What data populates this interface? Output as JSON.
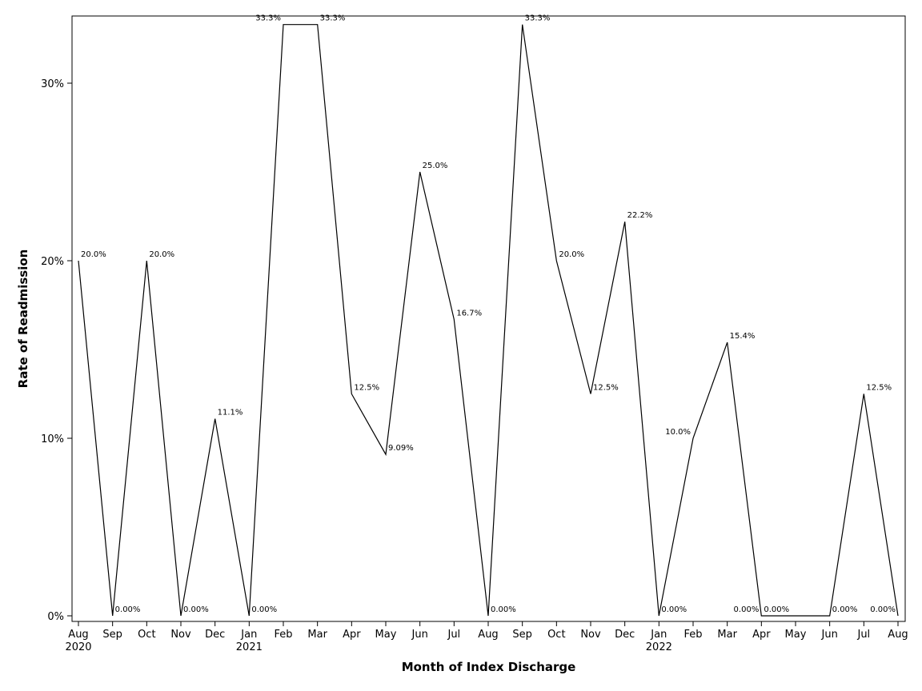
{
  "chart_data": {
    "type": "line",
    "xlabel": "Month of Index Discharge",
    "ylabel": "Rate of Readmission",
    "ylim": [
      0,
      33.3
    ],
    "yticks": [
      {
        "value": 0,
        "label": "0%"
      },
      {
        "value": 10,
        "label": "10%"
      },
      {
        "value": 20,
        "label": "20%"
      },
      {
        "value": 30,
        "label": "30%"
      }
    ],
    "grid": false,
    "legend": "none",
    "line_color": "#000000",
    "categories": [
      {
        "month": "Aug",
        "year": "2020"
      },
      {
        "month": "Sep",
        "year": ""
      },
      {
        "month": "Oct",
        "year": ""
      },
      {
        "month": "Nov",
        "year": ""
      },
      {
        "month": "Dec",
        "year": ""
      },
      {
        "month": "Jan",
        "year": "2021"
      },
      {
        "month": "Feb",
        "year": ""
      },
      {
        "month": "Mar",
        "year": ""
      },
      {
        "month": "Apr",
        "year": ""
      },
      {
        "month": "May",
        "year": ""
      },
      {
        "month": "Jun",
        "year": ""
      },
      {
        "month": "Jul",
        "year": ""
      },
      {
        "month": "Aug",
        "year": ""
      },
      {
        "month": "Sep",
        "year": ""
      },
      {
        "month": "Oct",
        "year": ""
      },
      {
        "month": "Nov",
        "year": ""
      },
      {
        "month": "Dec",
        "year": ""
      },
      {
        "month": "Jan",
        "year": "2022"
      },
      {
        "month": "Feb",
        "year": ""
      },
      {
        "month": "Mar",
        "year": ""
      },
      {
        "month": "Apr",
        "year": ""
      },
      {
        "month": "May",
        "year": ""
      },
      {
        "month": "Jun",
        "year": ""
      },
      {
        "month": "Jul",
        "year": ""
      },
      {
        "month": "Aug",
        "year": ""
      }
    ],
    "values": [
      20.0,
      0,
      20.0,
      0,
      11.1,
      0,
      33.3,
      33.3,
      12.5,
      9.09,
      25.0,
      16.7,
      0,
      33.3,
      20.0,
      12.5,
      22.2,
      0,
      10.0,
      15.4,
      0,
      null,
      0,
      12.5,
      0
    ],
    "data_labels": [
      {
        "index": 0,
        "text": "20.0%",
        "side": "right"
      },
      {
        "index": 1,
        "text": "0.00%",
        "side": "right"
      },
      {
        "index": 2,
        "text": "20.0%",
        "side": "right"
      },
      {
        "index": 3,
        "text": "0.00%",
        "side": "right"
      },
      {
        "index": 4,
        "text": "11.1%",
        "side": "right"
      },
      {
        "index": 5,
        "text": "0.00%",
        "side": "right"
      },
      {
        "index": 6,
        "text": "33.3%",
        "side": "left"
      },
      {
        "index": 7,
        "text": "33.3%",
        "side": "right"
      },
      {
        "index": 8,
        "text": "12.5%",
        "side": "right"
      },
      {
        "index": 9,
        "text": "9.09%",
        "side": "right"
      },
      {
        "index": 10,
        "text": "25.0%",
        "side": "right"
      },
      {
        "index": 11,
        "text": "16.7%",
        "side": "right"
      },
      {
        "index": 12,
        "text": "0.00%",
        "side": "right"
      },
      {
        "index": 13,
        "text": "33.3%",
        "side": "right"
      },
      {
        "index": 14,
        "text": "20.0%",
        "side": "right"
      },
      {
        "index": 15,
        "text": "12.5%",
        "side": "right"
      },
      {
        "index": 16,
        "text": "22.2%",
        "side": "right"
      },
      {
        "index": 17,
        "text": "0.00%",
        "side": "right"
      },
      {
        "index": 18,
        "text": "10.0%",
        "side": "left"
      },
      {
        "index": 19,
        "text": "15.4%",
        "side": "right"
      },
      {
        "index": 20,
        "text": "0.00%",
        "side": "left"
      },
      {
        "index": 20,
        "text": "0.00%",
        "side": "right"
      },
      {
        "index": 22,
        "text": "0.00%",
        "side": "right"
      },
      {
        "index": 23,
        "text": "12.5%",
        "side": "right"
      },
      {
        "index": 24,
        "text": "0.00%",
        "side": "left"
      }
    ]
  }
}
